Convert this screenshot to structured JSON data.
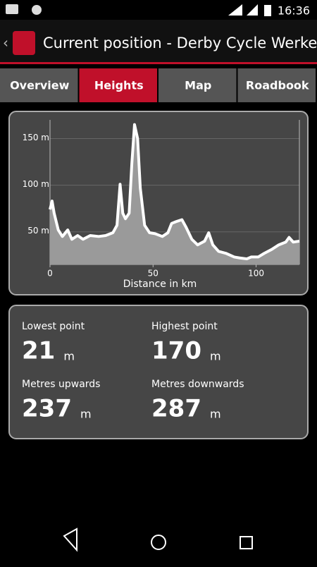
{
  "status_bar": {
    "time": "16:36"
  },
  "app_bar": {
    "title": "Current position - Derby Cycle Werke…"
  },
  "tabs": [
    "Overview",
    "Heights",
    "Map",
    "Roadbook"
  ],
  "chart_data": {
    "type": "area",
    "x_label": "Distance in km",
    "color": "#ffffff",
    "fill": "#9a9a9a",
    "x": [
      0,
      1,
      2,
      4,
      6,
      8.6,
      10.6,
      13.4,
      16,
      19.5,
      23.6,
      27,
      30.5,
      32.5,
      34,
      35.3,
      36.6,
      38.4,
      39.7,
      41,
      42.5,
      43.8,
      45.9,
      48.3,
      51,
      54.5,
      57.2,
      59,
      61.3,
      64,
      66,
      68.8,
      71.6,
      75,
      77,
      79,
      81.8,
      85.3,
      89.4,
      92,
      95.5,
      97.6,
      101,
      104,
      107.5,
      111,
      114.4,
      116,
      118,
      121
    ],
    "values": [
      74,
      83,
      70,
      52,
      45,
      52,
      42,
      46,
      42,
      46,
      45,
      46,
      49,
      57,
      101,
      70,
      64,
      70,
      123,
      165,
      150,
      97,
      57,
      49,
      48,
      45,
      49,
      59,
      61,
      63,
      55,
      42,
      36,
      40,
      49,
      36,
      29,
      27,
      23,
      22,
      21,
      23,
      23,
      27,
      31,
      36,
      39,
      44,
      39,
      40
    ],
    "xlim": [
      0,
      121
    ],
    "ylim": [
      15,
      170
    ],
    "xticks": [
      0,
      50,
      100
    ],
    "yticks": [
      {
        "value": 50,
        "label": "50 m"
      },
      {
        "value": 100,
        "label": "100 m"
      },
      {
        "value": 150,
        "label": "150 m"
      }
    ],
    "grid": true
  },
  "stats": [
    {
      "label": "Lowest point",
      "value": 21,
      "unit": "m"
    },
    {
      "label": "Highest point",
      "value": 170,
      "unit": "m"
    },
    {
      "label": "Metres upwards",
      "value": 237,
      "unit": "m"
    },
    {
      "label": "Metres downwards",
      "value": 287,
      "unit": "m"
    }
  ]
}
